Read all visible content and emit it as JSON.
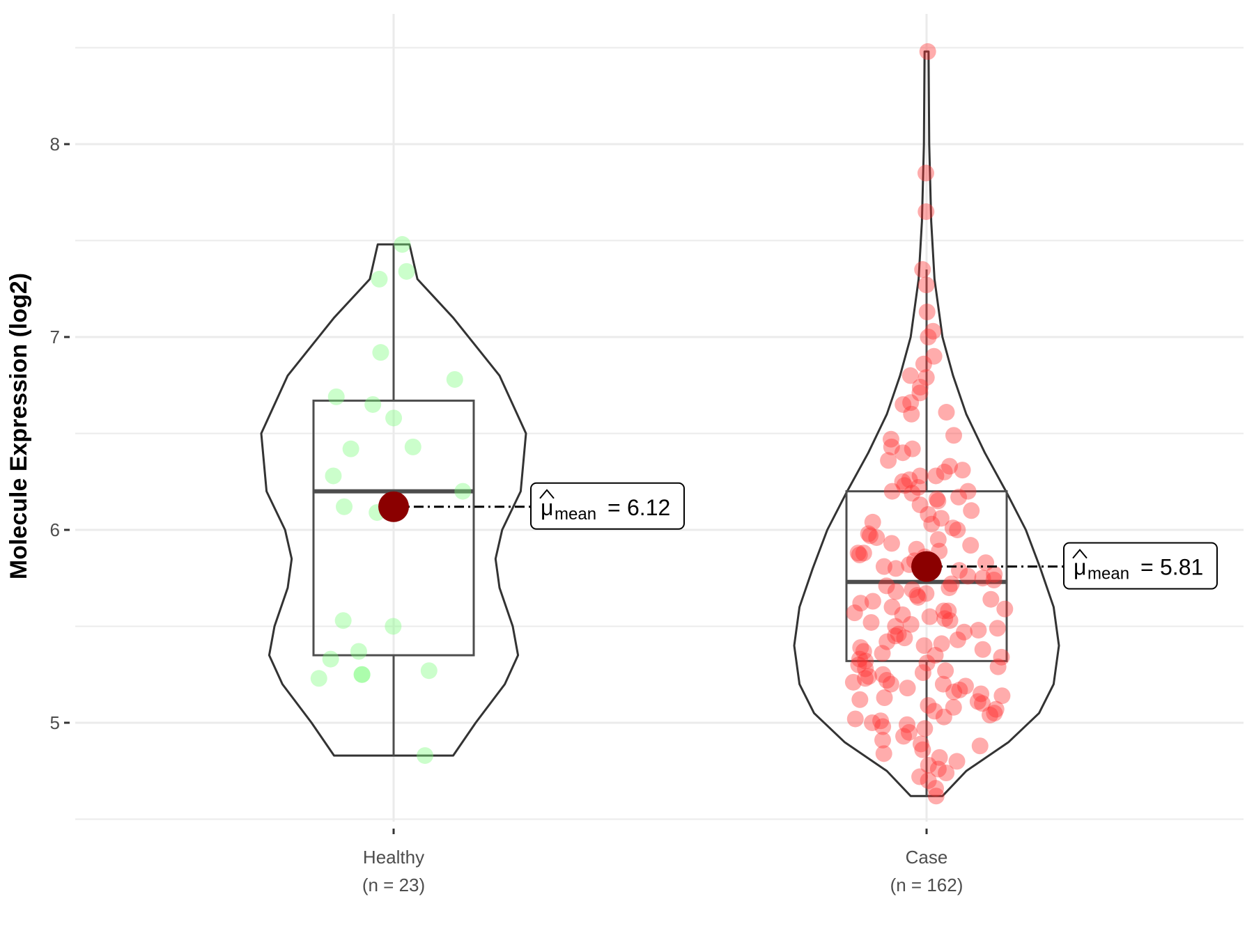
{
  "chart_data": {
    "type": "violin",
    "title": "",
    "xlabel": "",
    "ylabel": "Molecule Expression (log2)",
    "ylim": [
      4.5,
      8.5
    ],
    "yticks": [
      5,
      6,
      7,
      8
    ],
    "grid": true,
    "groups": [
      {
        "name": "Healthy",
        "label_line1": "Healthy",
        "label_line2": "(n = 23)",
        "n": 23,
        "color": "#7CFC7C",
        "box": {
          "q1": 5.35,
          "median": 6.2,
          "q3": 6.67,
          "whisker_low": 4.83,
          "whisker_high": 7.48
        },
        "mean": 6.12,
        "mean_text": "6.12",
        "violin_range": [
          4.83,
          7.48
        ],
        "density": [
          [
            4.83,
            0.45
          ],
          [
            5.0,
            0.62
          ],
          [
            5.2,
            0.84
          ],
          [
            5.35,
            0.94
          ],
          [
            5.5,
            0.9
          ],
          [
            5.7,
            0.8
          ],
          [
            5.85,
            0.77
          ],
          [
            6.0,
            0.82
          ],
          [
            6.2,
            0.96
          ],
          [
            6.5,
            1.0
          ],
          [
            6.8,
            0.8
          ],
          [
            7.1,
            0.45
          ],
          [
            7.3,
            0.18
          ],
          [
            7.48,
            0.12
          ]
        ],
        "points": [
          7.48,
          7.34,
          7.3,
          6.92,
          6.78,
          6.69,
          6.65,
          6.58,
          6.43,
          6.42,
          6.28,
          6.2,
          6.09,
          5.53,
          5.5,
          5.37,
          5.33,
          5.27,
          5.25,
          5.25,
          5.23,
          4.83,
          6.12
        ]
      },
      {
        "name": "Case",
        "label_line1": "Case",
        "label_line2": "(n = 162)",
        "n": 162,
        "color": "#FF3030",
        "box": {
          "q1": 5.32,
          "median": 5.73,
          "q3": 6.2,
          "whisker_low": 4.62,
          "whisker_high": 7.35
        },
        "mean": 5.81,
        "mean_text": "5.81",
        "violin_range": [
          4.62,
          8.48
        ],
        "density": [
          [
            4.62,
            0.12
          ],
          [
            4.75,
            0.3
          ],
          [
            4.9,
            0.62
          ],
          [
            5.05,
            0.85
          ],
          [
            5.2,
            0.96
          ],
          [
            5.4,
            1.0
          ],
          [
            5.6,
            0.96
          ],
          [
            5.8,
            0.86
          ],
          [
            6.0,
            0.75
          ],
          [
            6.2,
            0.6
          ],
          [
            6.4,
            0.44
          ],
          [
            6.6,
            0.3
          ],
          [
            6.8,
            0.2
          ],
          [
            7.0,
            0.12
          ],
          [
            7.3,
            0.06
          ],
          [
            7.6,
            0.035
          ],
          [
            8.0,
            0.02
          ],
          [
            8.48,
            0.015
          ]
        ],
        "points": [
          8.48,
          7.85,
          7.65,
          7.35,
          7.27,
          7.13,
          7.03,
          7.0,
          6.9,
          6.86,
          6.8,
          6.79,
          6.74,
          6.71,
          6.66,
          6.65,
          6.61,
          6.6,
          6.49,
          6.47,
          6.43,
          6.42,
          6.4,
          6.36,
          6.33,
          6.31,
          6.3,
          6.28,
          6.28,
          6.26,
          6.25,
          6.23,
          6.22,
          6.2,
          6.2,
          6.19,
          6.17,
          6.16,
          6.15,
          6.13,
          6.1,
          6.08,
          6.06,
          6.04,
          6.03,
          6.01,
          6.0,
          5.98,
          5.97,
          5.96,
          5.95,
          5.93,
          5.92,
          5.9,
          5.89,
          5.88,
          5.87,
          5.86,
          5.84,
          5.83,
          5.82,
          5.81,
          5.8,
          5.79,
          5.77,
          5.76,
          5.75,
          5.74,
          5.72,
          5.71,
          5.7,
          5.69,
          5.68,
          5.67,
          5.66,
          5.65,
          5.64,
          5.63,
          5.62,
          5.6,
          5.59,
          5.58,
          5.57,
          5.56,
          5.55,
          5.54,
          5.53,
          5.52,
          5.51,
          5.5,
          5.49,
          5.48,
          5.47,
          5.46,
          5.45,
          5.44,
          5.43,
          5.42,
          5.41,
          5.4,
          5.39,
          5.38,
          5.37,
          5.36,
          5.35,
          5.34,
          5.33,
          5.32,
          5.31,
          5.3,
          5.29,
          5.28,
          5.27,
          5.26,
          5.25,
          5.24,
          5.23,
          5.22,
          5.21,
          5.2,
          5.2,
          5.19,
          5.18,
          5.17,
          5.16,
          5.15,
          5.14,
          5.13,
          5.12,
          5.11,
          5.1,
          5.09,
          5.08,
          5.07,
          5.06,
          5.05,
          5.04,
          5.03,
          5.02,
          5.01,
          5.0,
          4.99,
          4.98,
          4.97,
          4.95,
          4.93,
          4.91,
          4.89,
          4.88,
          4.86,
          4.84,
          4.82,
          4.8,
          4.78,
          4.76,
          4.74,
          4.72,
          4.7,
          4.66,
          4.62,
          5.58,
          5.88
        ]
      }
    ]
  },
  "colors": {
    "grid": "#ebebeb",
    "outline": "#333333",
    "box": "#4d4d4d",
    "mean_point": "#8B0000"
  }
}
